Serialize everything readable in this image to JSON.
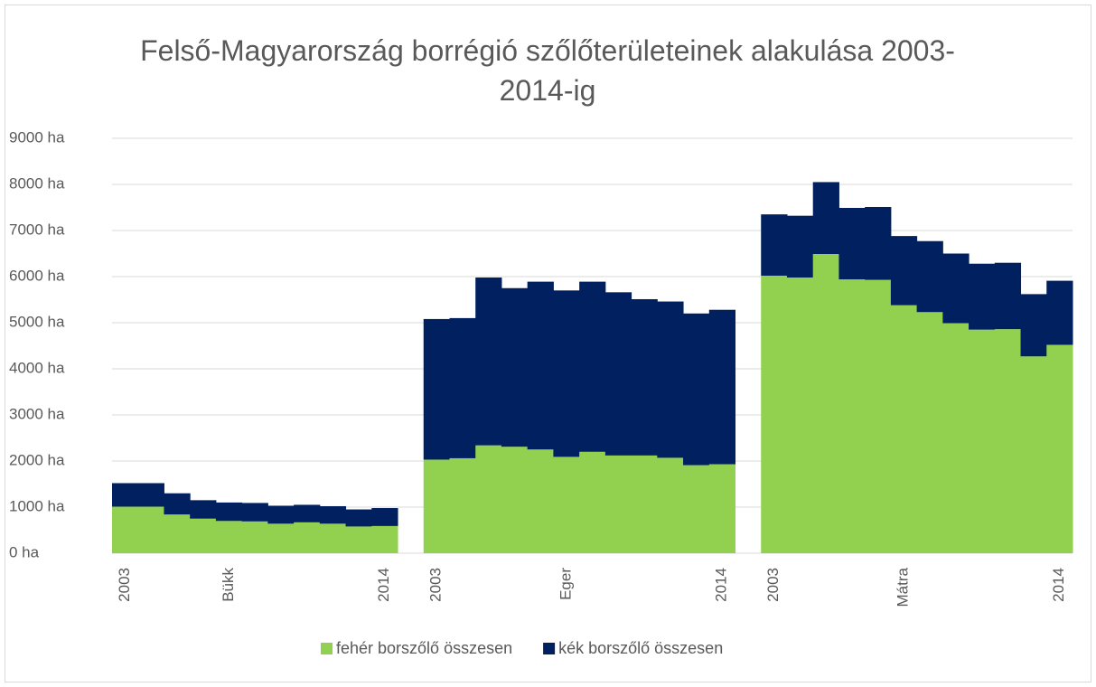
{
  "chart_data": {
    "type": "stacked_bar",
    "title": "Felső-Magyarország borrégió szőlőterületeinek alakulása 2003-2014-ig",
    "categories": [
      "2003",
      null,
      null,
      null,
      "Bükk",
      null,
      null,
      null,
      null,
      null,
      "2014",
      null,
      "2003",
      null,
      null,
      null,
      null,
      "Eger",
      null,
      null,
      null,
      null,
      null,
      "2014",
      null,
      "2003",
      null,
      null,
      null,
      null,
      "Mátra",
      null,
      null,
      null,
      null,
      null,
      "2014"
    ],
    "series": [
      {
        "name": "fehér borszőlő összesen",
        "color": "#92d050",
        "values": [
          1010,
          1010,
          840,
          750,
          700,
          690,
          640,
          670,
          640,
          580,
          590,
          null,
          2030,
          2060,
          2340,
          2310,
          2250,
          2090,
          2200,
          2120,
          2120,
          2070,
          1910,
          1930,
          null,
          6020,
          5980,
          6490,
          5940,
          5930,
          5380,
          5230,
          4990,
          4850,
          4860,
          4270,
          4520
        ]
      },
      {
        "name": "kék borszőlő összesen",
        "color": "#002060",
        "values": [
          510,
          510,
          460,
          400,
          400,
          400,
          390,
          380,
          380,
          370,
          390,
          null,
          3050,
          3040,
          3640,
          3440,
          3640,
          3610,
          3690,
          3540,
          3390,
          3390,
          3290,
          3350,
          null,
          1330,
          1340,
          1560,
          1550,
          1580,
          1500,
          1540,
          1510,
          1430,
          1440,
          1350,
          1390
        ]
      }
    ],
    "ylim": [
      0,
      9000
    ],
    "yticks": [
      {
        "value": 0,
        "label": "0 ha"
      },
      {
        "value": 1000,
        "label": "1000 ha"
      },
      {
        "value": 2000,
        "label": "2000 ha"
      },
      {
        "value": 3000,
        "label": "3000 ha"
      },
      {
        "value": 4000,
        "label": "4000 ha"
      },
      {
        "value": 5000,
        "label": "5000 ha"
      },
      {
        "value": 6000,
        "label": "6000 ha"
      },
      {
        "value": 7000,
        "label": "7000 ha"
      },
      {
        "value": 8000,
        "label": "8000 ha"
      },
      {
        "value": 9000,
        "label": "9000 ha"
      }
    ],
    "grid": true,
    "legend": "bottom"
  }
}
